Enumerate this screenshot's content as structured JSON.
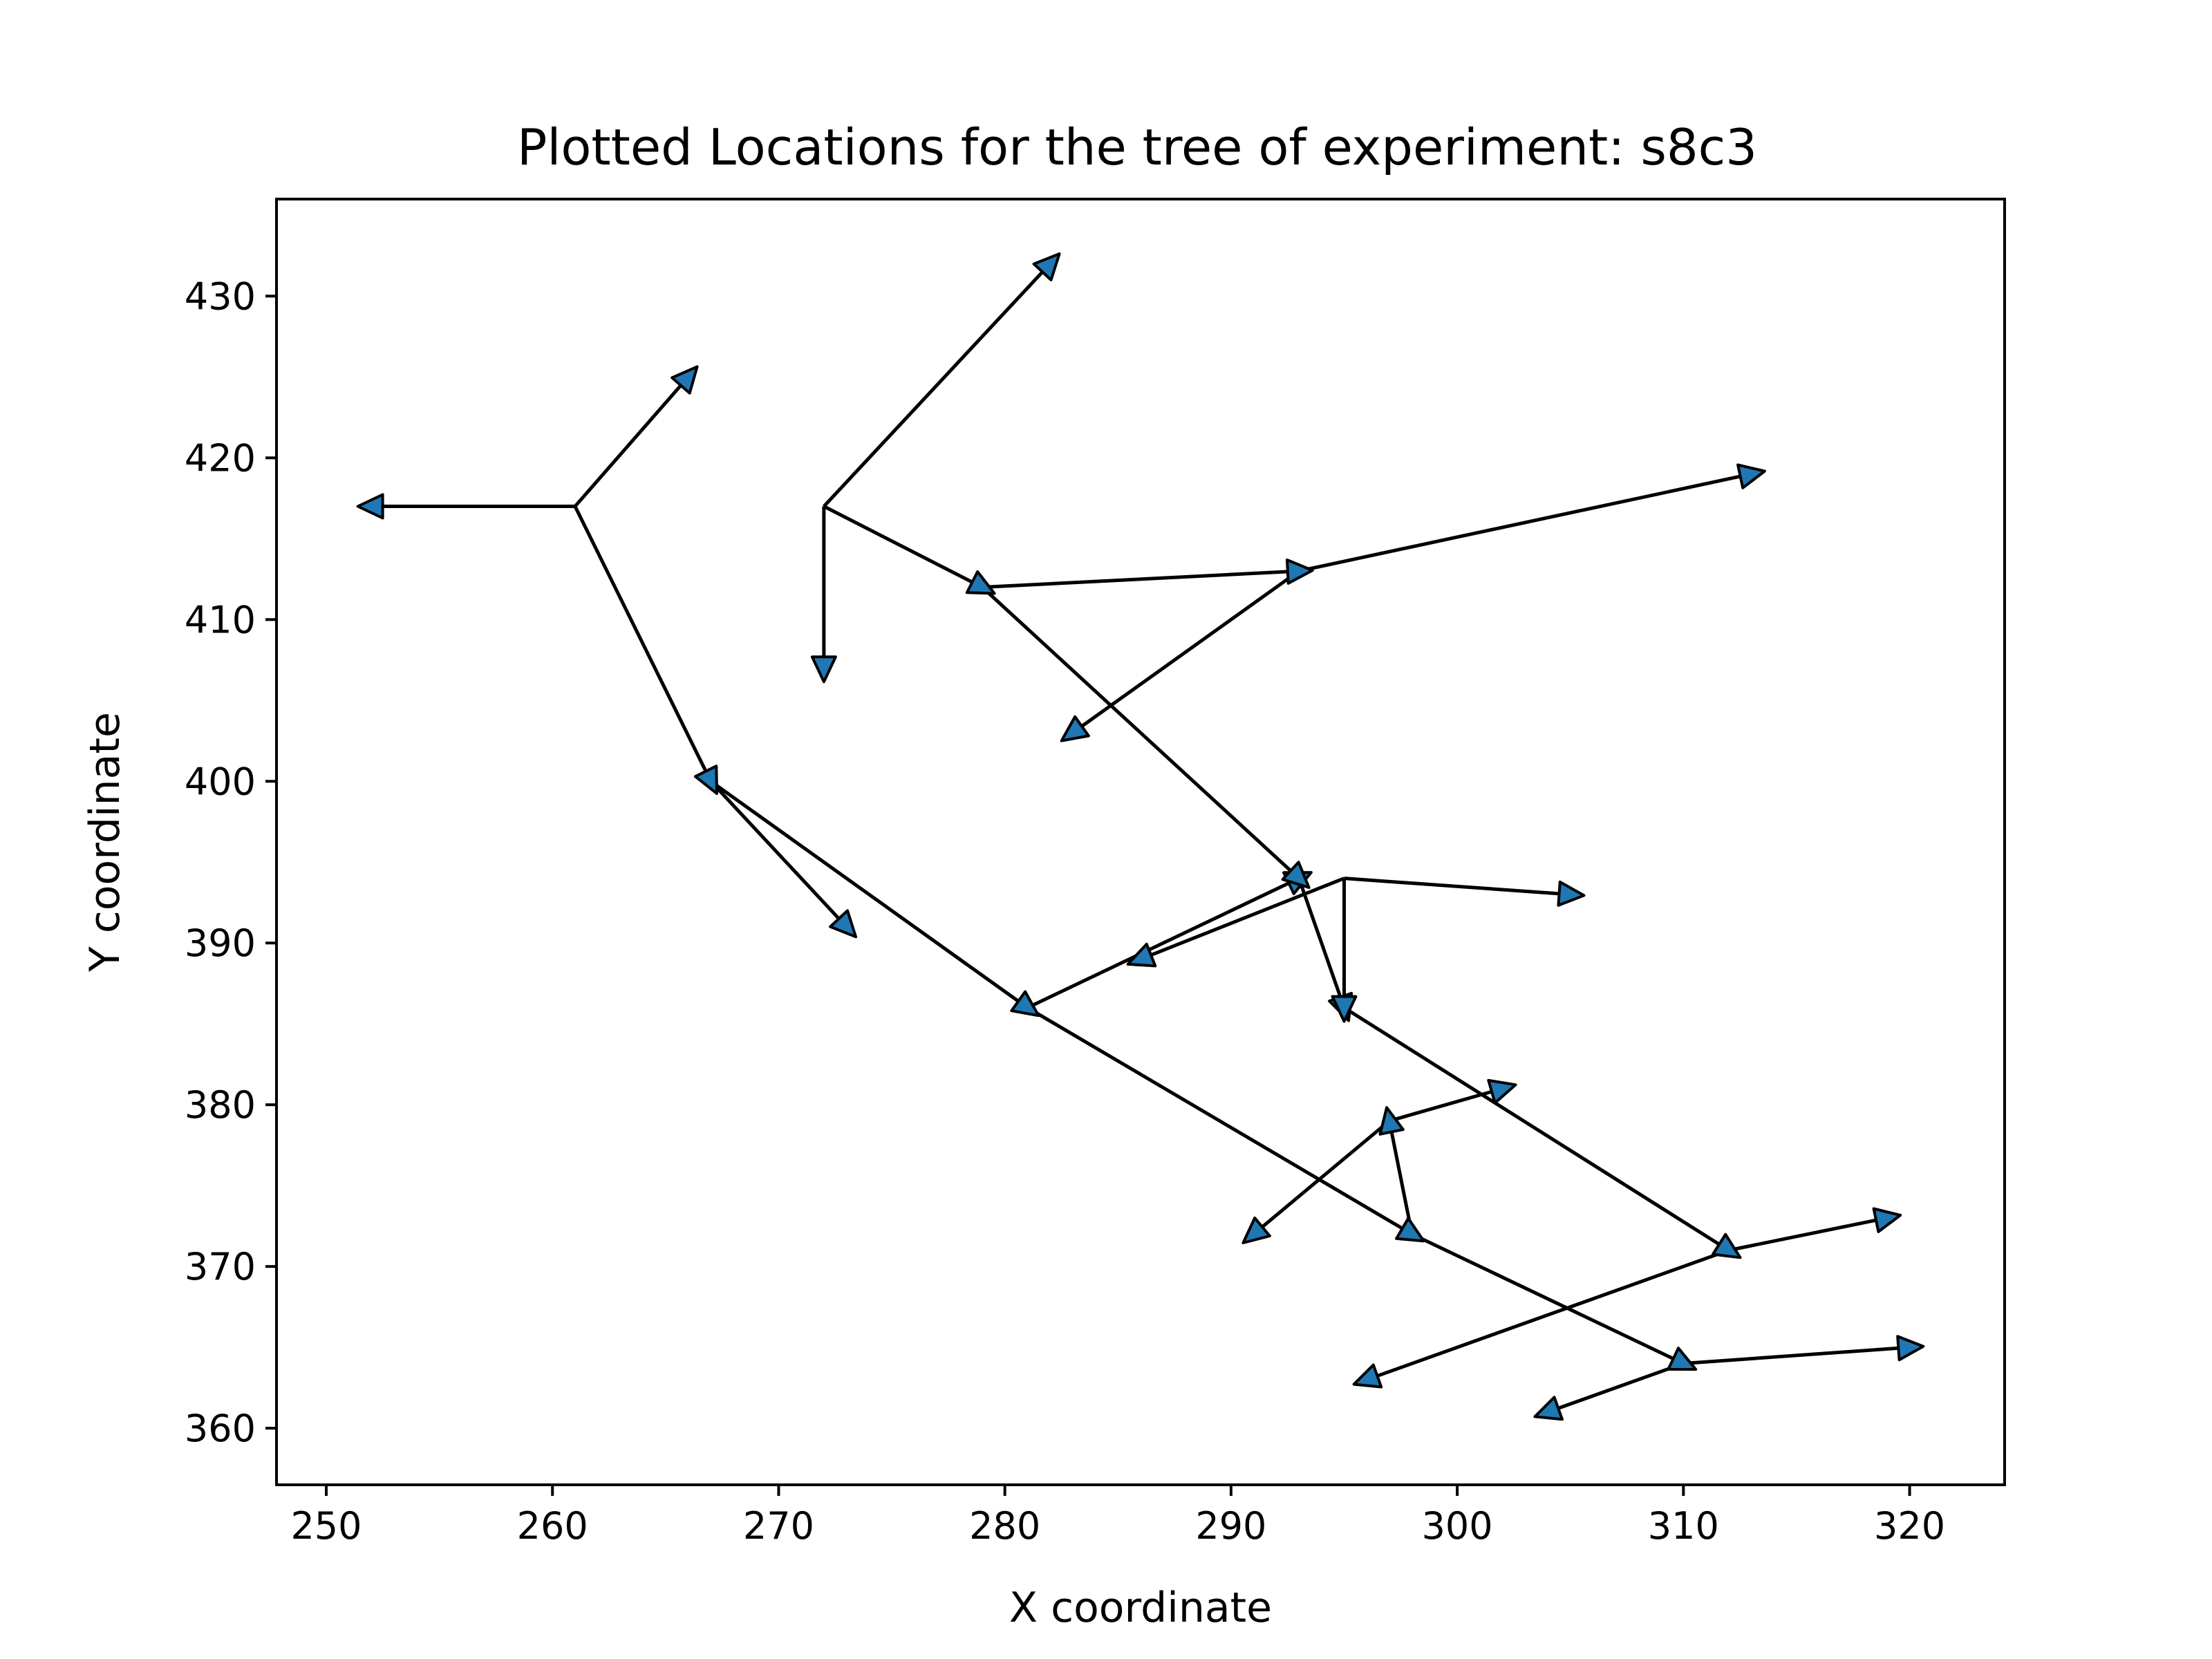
{
  "chart_data": {
    "type": "tree-arrows",
    "title": "Plotted Locations for the tree of experiment: s8c3",
    "xlabel": "X coordinate",
    "ylabel": "Y coordinate",
    "xlim": [
      247.8,
      324.2
    ],
    "ylim": [
      356.5,
      436.0
    ],
    "xticks": [
      250,
      260,
      270,
      280,
      290,
      300,
      310,
      320
    ],
    "yticks": [
      360,
      370,
      380,
      390,
      400,
      410,
      420,
      430
    ],
    "grid": false,
    "colors": {
      "marker_fill": "#1f77b4",
      "edge": "#000000"
    },
    "edges": [
      {
        "from": [
          261,
          417
        ],
        "to": [
          252,
          417
        ]
      },
      {
        "from": [
          261,
          417
        ],
        "to": [
          266,
          425
        ]
      },
      {
        "from": [
          261,
          417
        ],
        "to": [
          267,
          400
        ]
      },
      {
        "from": [
          267,
          400
        ],
        "to": [
          273,
          391
        ]
      },
      {
        "from": [
          267,
          400
        ],
        "to": [
          281,
          386
        ]
      },
      {
        "from": [
          281,
          386
        ],
        "to": [
          293,
          394
        ]
      },
      {
        "from": [
          281,
          386
        ],
        "to": [
          298,
          372
        ]
      },
      {
        "from": [
          298,
          372
        ],
        "to": [
          310,
          364
        ]
      },
      {
        "from": [
          298,
          372
        ],
        "to": [
          297,
          379
        ]
      },
      {
        "from": [
          297,
          379
        ],
        "to": [
          291,
          372
        ]
      },
      {
        "from": [
          297,
          379
        ],
        "to": [
          302,
          381
        ]
      },
      {
        "from": [
          310,
          364
        ],
        "to": [
          304,
          361
        ]
      },
      {
        "from": [
          310,
          364
        ],
        "to": [
          320,
          365
        ]
      },
      {
        "from": [
          272,
          417
        ],
        "to": [
          282,
          432
        ]
      },
      {
        "from": [
          272,
          417
        ],
        "to": [
          272,
          407
        ]
      },
      {
        "from": [
          272,
          417
        ],
        "to": [
          279,
          412
        ]
      },
      {
        "from": [
          279,
          412
        ],
        "to": [
          293,
          413
        ]
      },
      {
        "from": [
          293,
          413
        ],
        "to": [
          313,
          419
        ]
      },
      {
        "from": [
          293,
          413
        ],
        "to": [
          283,
          403
        ]
      },
      {
        "from": [
          279,
          412
        ],
        "to": [
          293,
          394
        ]
      },
      {
        "from": [
          293,
          394
        ],
        "to": [
          295,
          386
        ]
      },
      {
        "from": [
          295,
          386
        ],
        "to": [
          312,
          371
        ]
      },
      {
        "from": [
          312,
          371
        ],
        "to": [
          319,
          373
        ]
      },
      {
        "from": [
          312,
          371
        ],
        "to": [
          296,
          363
        ]
      },
      {
        "from": [
          295,
          394
        ],
        "to": [
          305,
          393
        ]
      },
      {
        "from": [
          295,
          394
        ],
        "to": [
          286,
          389
        ]
      },
      {
        "from": [
          295,
          394
        ],
        "to": [
          295,
          386
        ]
      }
    ]
  }
}
